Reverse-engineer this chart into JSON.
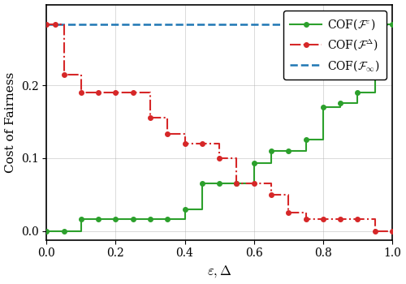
{
  "title": "",
  "xlabel": "$\\varepsilon, \\Delta$",
  "ylabel": "Cost of Fairness",
  "xlim": [
    0.0,
    1.0
  ],
  "ylim": [
    -0.012,
    0.31
  ],
  "blue_line_y": 0.283,
  "green_x": [
    0.0,
    0.05,
    0.1,
    0.15,
    0.2,
    0.25,
    0.3,
    0.35,
    0.4,
    0.45,
    0.5,
    0.55,
    0.6,
    0.65,
    0.7,
    0.75,
    0.8,
    0.85,
    0.9,
    0.95,
    1.0
  ],
  "green_y": [
    0.0,
    0.0,
    0.017,
    0.017,
    0.017,
    0.017,
    0.017,
    0.017,
    0.03,
    0.065,
    0.065,
    0.065,
    0.093,
    0.11,
    0.11,
    0.125,
    0.17,
    0.175,
    0.19,
    0.283,
    0.283
  ],
  "red_x": [
    0.0,
    0.025,
    0.05,
    0.1,
    0.15,
    0.2,
    0.25,
    0.3,
    0.35,
    0.4,
    0.45,
    0.5,
    0.55,
    0.6,
    0.65,
    0.7,
    0.75,
    0.8,
    0.85,
    0.9,
    0.95,
    1.0
  ],
  "red_y": [
    0.283,
    0.283,
    0.215,
    0.19,
    0.19,
    0.19,
    0.19,
    0.155,
    0.133,
    0.12,
    0.12,
    0.1,
    0.065,
    0.065,
    0.05,
    0.025,
    0.017,
    0.017,
    0.017,
    0.017,
    0.0,
    0.0
  ],
  "green_color": "#2ca02c",
  "red_color": "#d62728",
  "blue_color": "#1f77b4",
  "legend_label_green": "COF($\\mathcal{F}^\\varepsilon$)",
  "legend_label_red": "COF($\\mathcal{F}^\\Delta$)",
  "legend_label_blue": "COF($\\mathcal{F}_\\infty$)",
  "yticks": [
    0.0,
    0.1,
    0.2
  ],
  "xticks": [
    0.0,
    0.2,
    0.4,
    0.6,
    0.8,
    1.0
  ]
}
